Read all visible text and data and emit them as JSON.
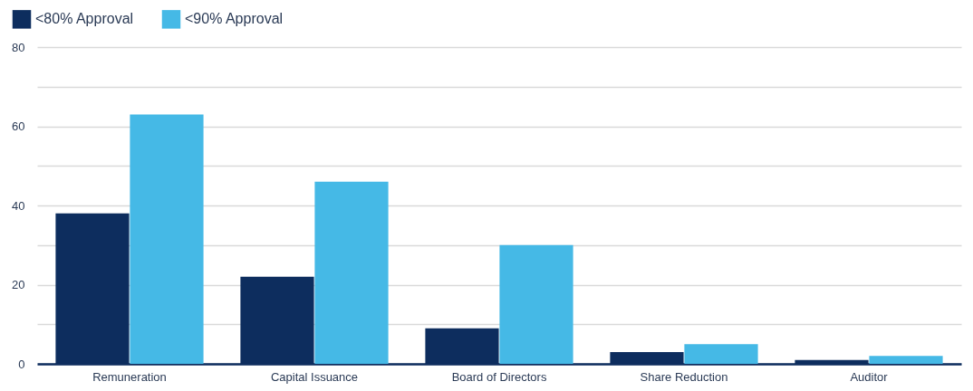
{
  "chart_data": {
    "type": "bar",
    "categories": [
      "Remuneration",
      "Capital Issuance",
      "Board of Directors",
      "Share Reduction",
      "Auditor"
    ],
    "series": [
      {
        "name": "<80% Approval",
        "color": "#0d2d5e",
        "values": [
          38,
          22,
          9,
          3,
          1
        ]
      },
      {
        "name": "<90% Approval",
        "color": "#45b9e6",
        "values": [
          63,
          46,
          30,
          5,
          2
        ]
      }
    ],
    "ylim": [
      0,
      80
    ],
    "yticks": [
      0,
      {
        "value": 10,
        "label": null
      },
      20,
      {
        "value": 30,
        "label": null
      },
      40,
      {
        "value": 50,
        "label": null
      },
      60,
      {
        "value": 70,
        "label": null
      },
      80
    ],
    "grid": "y",
    "legend": "top left"
  }
}
